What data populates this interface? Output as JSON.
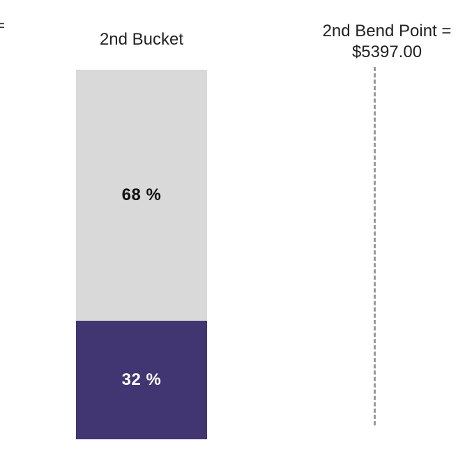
{
  "edge_glyph": "=",
  "chart_data": {
    "type": "bar",
    "stacked": true,
    "orientation": "vertical",
    "categories": [
      "2nd Bucket"
    ],
    "series": [
      {
        "values": [
          32
        ],
        "label": "32 %",
        "color": "#423672",
        "text_color": "#ffffff"
      },
      {
        "values": [
          68
        ],
        "label": "68 %",
        "color": "#d9d9d9",
        "text_color": "#111111"
      }
    ],
    "ylim": [
      0,
      100
    ],
    "grid": false,
    "reference_line": {
      "label_line1": "2nd Bend Point =",
      "label_line2": "$5397.00",
      "style": "dashed",
      "color": "#9a9a9a"
    }
  }
}
